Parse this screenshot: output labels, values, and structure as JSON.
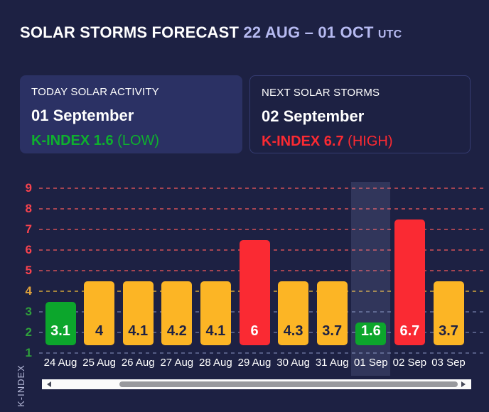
{
  "header": {
    "title": "SOLAR STORMS FORECAST",
    "range": "22 AUG – 01 OCT",
    "timezone": "UTC"
  },
  "cards": {
    "today": {
      "label": "TODAY SOLAR ACTIVITY",
      "date": "01 September",
      "kindex_label": "K-INDEX",
      "kindex_value": "1.6",
      "level": "(LOW)",
      "severity": "low"
    },
    "next": {
      "label": "NEXT SOLAR STORMS",
      "date": "02 September",
      "kindex_label": "K-INDEX",
      "kindex_value": "6.7",
      "level": "(HIGH)",
      "severity": "high"
    }
  },
  "chart_data": {
    "type": "bar",
    "ylabel": "K-INDEX",
    "categories": [
      "24 Aug",
      "25 Aug",
      "26 Aug",
      "27 Aug",
      "28 Aug",
      "29 Aug",
      "30 Aug",
      "31 Aug",
      "01 Sep",
      "02 Sep",
      "03 Sep"
    ],
    "values": [
      3.1,
      4,
      4.1,
      4.2,
      4.1,
      6,
      4.3,
      3.7,
      1.6,
      6.7,
      3.7
    ],
    "value_labels": [
      "3.1",
      "4",
      "4.1",
      "4.2",
      "4.1",
      "6",
      "4.3",
      "3.7",
      "1.6",
      "6.7",
      "3.7"
    ],
    "severities": [
      "low",
      "moderate",
      "moderate",
      "moderate",
      "moderate",
      "high",
      "moderate",
      "moderate",
      "low",
      "high",
      "moderate"
    ],
    "highlighted_category": "01 Sep",
    "highlighted_index": 8,
    "yticks": [
      1,
      2,
      3,
      4,
      5,
      6,
      7,
      8,
      9
    ],
    "ylim": [
      1,
      9
    ],
    "grid": true,
    "legend": false,
    "thresholds": {
      "low_max": 3,
      "moderate_max": 4
    }
  },
  "palette": {
    "page_bg": "#1d2143",
    "card_bg": "#2b3164",
    "card_border": "#353c72",
    "accent": "#b6baf1",
    "bar": {
      "low": "#0ca62c",
      "moderate": "#fcb525",
      "high": "#fa2a33"
    },
    "bar_text": {
      "low": "#ffffff",
      "moderate": "#1d2143",
      "high": "#ffffff"
    },
    "tick": {
      "low": "#2fa03c",
      "moderate": "#e1a33b",
      "high": "#f9434e"
    },
    "grid": {
      "low": "#545c84",
      "moderate": "#a5843c",
      "high": "#a64552"
    },
    "highlight_band": "rgba(155,165,215,0.16)",
    "axis_title": "#b5b9d8",
    "scrollbar_track": "#fbfbfb",
    "scrollbar_thumb": "#98999d"
  }
}
